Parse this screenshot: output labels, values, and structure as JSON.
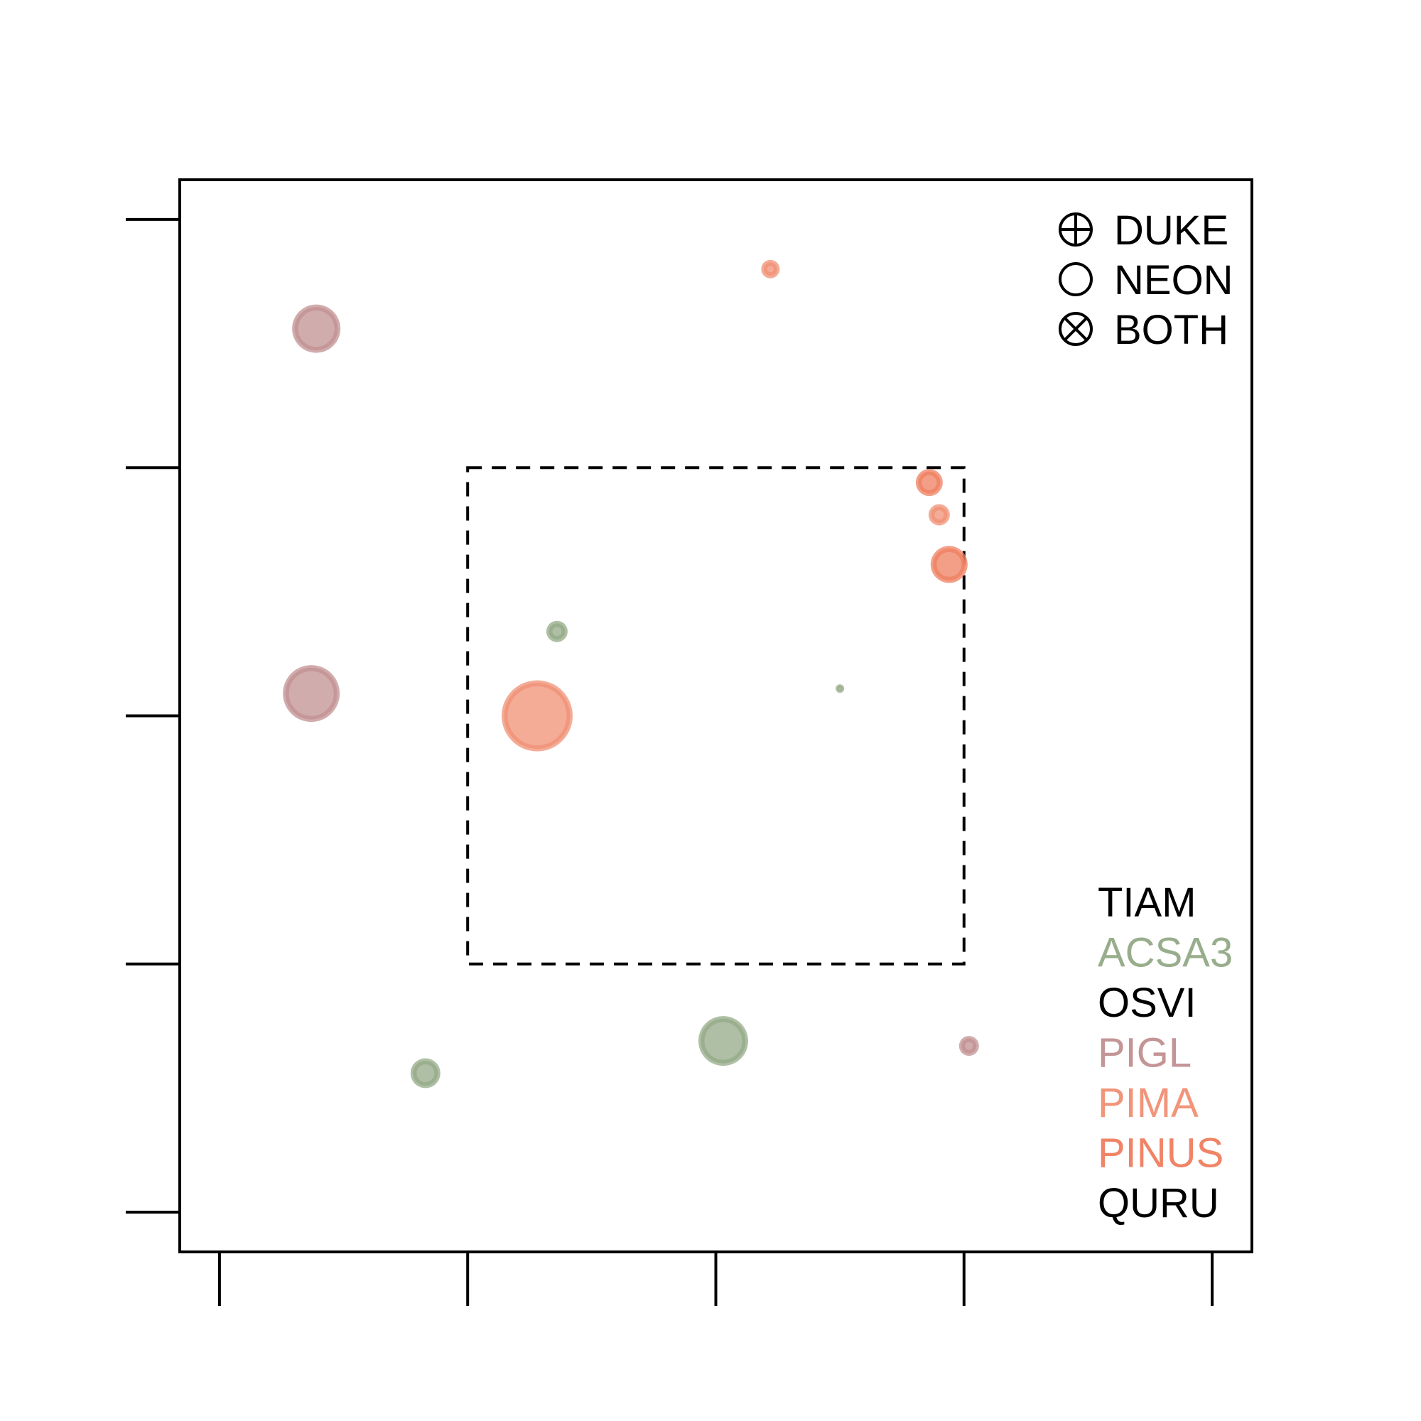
{
  "chart_data": {
    "type": "scatter",
    "title": "",
    "xlabel": "",
    "ylabel": "",
    "xlim": [
      -0.16,
      4.16
    ],
    "ylim": [
      -0.16,
      4.16
    ],
    "x_ticks": [
      0,
      1,
      2,
      3,
      4
    ],
    "y_ticks": [
      0,
      1,
      2,
      3,
      4
    ],
    "tick_labels_shown": false,
    "grid": false,
    "highlight_box": {
      "x": [
        1,
        3
      ],
      "y": [
        1,
        3
      ],
      "style": "dashed"
    },
    "colors": {
      "TIAM": "#000000",
      "ACSA3": "#98ad8c",
      "OSVI": "#000000",
      "PIGL": "#c49596",
      "PIMA": "#f1957a",
      "PINUS": "#f08466",
      "QURU": "#000000"
    },
    "shape_legend": {
      "position": "top-right",
      "items": [
        {
          "symbol": "circle-plus",
          "label": "DUKE"
        },
        {
          "symbol": "circle",
          "label": "NEON"
        },
        {
          "symbol": "circle-x",
          "label": "BOTH"
        }
      ]
    },
    "species_legend": {
      "position": "bottom-right",
      "items": [
        {
          "label": "TIAM",
          "color": "#000000"
        },
        {
          "label": "ACSA3",
          "color": "#98ad8c"
        },
        {
          "label": "OSVI",
          "color": "#000000"
        },
        {
          "label": "PIGL",
          "color": "#c49596"
        },
        {
          "label": "PIMA",
          "color": "#f1957a"
        },
        {
          "label": "PINUS",
          "color": "#f08466"
        },
        {
          "label": "QURU",
          "color": "#000000"
        }
      ]
    },
    "points": [
      {
        "species": "PIGL",
        "x": 0.39,
        "y": 3.56,
        "size": 3.4
      },
      {
        "species": "PIGL",
        "x": 0.37,
        "y": 2.09,
        "size": 4.0
      },
      {
        "species": "PIGL",
        "x": 3.02,
        "y": 0.67,
        "size": 1.4
      },
      {
        "species": "PIMA",
        "x": 2.22,
        "y": 3.8,
        "size": 1.3
      },
      {
        "species": "PIMA",
        "x": 1.28,
        "y": 2.0,
        "size": 5.0
      },
      {
        "species": "PIMA",
        "x": 2.9,
        "y": 2.81,
        "size": 1.5
      },
      {
        "species": "PINUS",
        "x": 2.86,
        "y": 2.94,
        "size": 1.9
      },
      {
        "species": "PINUS",
        "x": 2.94,
        "y": 2.61,
        "size": 2.6
      },
      {
        "species": "ACSA3",
        "x": 1.36,
        "y": 2.34,
        "size": 1.5
      },
      {
        "species": "ACSA3",
        "x": 2.5,
        "y": 2.11,
        "size": 0.6
      },
      {
        "species": "ACSA3",
        "x": 0.83,
        "y": 0.56,
        "size": 2.1
      },
      {
        "species": "ACSA3",
        "x": 2.03,
        "y": 0.69,
        "size": 3.5
      }
    ]
  }
}
